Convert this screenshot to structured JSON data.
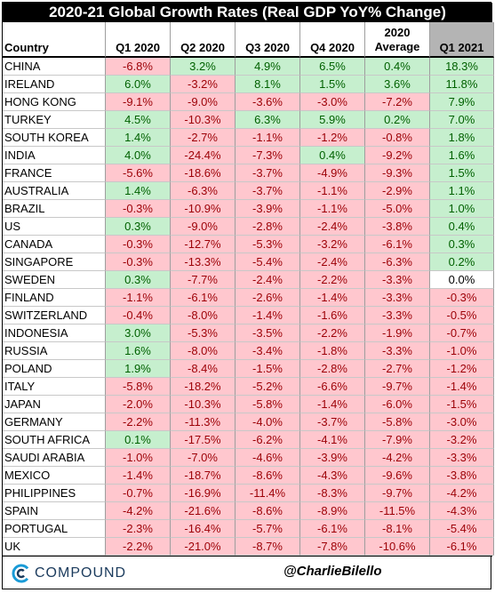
{
  "title": "2020-21 Global Growth Rates (Real GDP YoY% Change)",
  "footer": {
    "brand": "COMPOUND",
    "handle": "@CharlieBilello",
    "brand_color": "#1a3a5c",
    "logo_icon": "compound-c-icon"
  },
  "colors": {
    "positive_fill": "#c6efce",
    "positive_text": "#006100",
    "negative_fill": "#ffc7ce",
    "negative_text": "#9c0006",
    "highlight_header": "#b4b4b4"
  },
  "chart_data": {
    "type": "table",
    "title": "2020-21 Global Growth Rates (Real GDP YoY% Change)",
    "columns": [
      "Country",
      "Q1 2020",
      "Q2 2020",
      "Q3 2020",
      "Q4 2020",
      "2020 Average",
      "Q1 2021"
    ],
    "unit": "%",
    "rows": [
      {
        "country": "CHINA",
        "values": [
          -6.8,
          3.2,
          4.9,
          6.5,
          0.4,
          18.3
        ]
      },
      {
        "country": "IRELAND",
        "values": [
          6.0,
          -3.2,
          8.1,
          1.5,
          3.6,
          11.8
        ]
      },
      {
        "country": "HONG KONG",
        "values": [
          -9.1,
          -9.0,
          -3.6,
          -3.0,
          -7.2,
          7.9
        ]
      },
      {
        "country": "TURKEY",
        "values": [
          4.5,
          -10.3,
          6.3,
          5.9,
          0.2,
          7.0
        ]
      },
      {
        "country": "SOUTH KOREA",
        "values": [
          1.4,
          -2.7,
          -1.1,
          -1.2,
          -0.8,
          1.8
        ]
      },
      {
        "country": "INDIA",
        "values": [
          4.0,
          -24.4,
          -7.3,
          0.4,
          -9.2,
          1.6
        ]
      },
      {
        "country": "FRANCE",
        "values": [
          -5.6,
          -18.6,
          -3.7,
          -4.9,
          -9.3,
          1.5
        ]
      },
      {
        "country": "AUSTRALIA",
        "values": [
          1.4,
          -6.3,
          -3.7,
          -1.1,
          -2.9,
          1.1
        ]
      },
      {
        "country": "BRAZIL",
        "values": [
          -0.3,
          -10.9,
          -3.9,
          -1.1,
          -5.0,
          1.0
        ]
      },
      {
        "country": "US",
        "values": [
          0.3,
          -9.0,
          -2.8,
          -2.4,
          -3.8,
          0.4
        ]
      },
      {
        "country": "CANADA",
        "values": [
          -0.3,
          -12.7,
          -5.3,
          -3.2,
          -6.1,
          0.3
        ]
      },
      {
        "country": "SINGAPORE",
        "values": [
          -0.3,
          -13.3,
          -5.4,
          -2.4,
          -6.3,
          0.2
        ]
      },
      {
        "country": "SWEDEN",
        "values": [
          0.3,
          -7.7,
          -2.4,
          -2.2,
          -3.3,
          0.0
        ]
      },
      {
        "country": "FINLAND",
        "values": [
          -1.1,
          -6.1,
          -2.6,
          -1.4,
          -3.3,
          -0.3
        ]
      },
      {
        "country": "SWITZERLAND",
        "values": [
          -0.4,
          -8.0,
          -1.4,
          -1.6,
          -3.3,
          -0.5
        ]
      },
      {
        "country": "INDONESIA",
        "values": [
          3.0,
          -5.3,
          -3.5,
          -2.2,
          -1.9,
          -0.7
        ]
      },
      {
        "country": "RUSSIA",
        "values": [
          1.6,
          -8.0,
          -3.4,
          -1.8,
          -3.3,
          -1.0
        ]
      },
      {
        "country": "POLAND",
        "values": [
          1.9,
          -8.4,
          -1.5,
          -2.8,
          -2.7,
          -1.2
        ]
      },
      {
        "country": "ITALY",
        "values": [
          -5.8,
          -18.2,
          -5.2,
          -6.6,
          -9.7,
          -1.4
        ]
      },
      {
        "country": "JAPAN",
        "values": [
          -2.0,
          -10.3,
          -5.8,
          -1.4,
          -6.0,
          -1.5
        ]
      },
      {
        "country": "GERMANY",
        "values": [
          -2.2,
          -11.3,
          -4.0,
          -3.7,
          -5.8,
          -3.0
        ]
      },
      {
        "country": "SOUTH AFRICA",
        "values": [
          0.1,
          -17.5,
          -6.2,
          -4.1,
          -7.9,
          -3.2
        ]
      },
      {
        "country": "SAUDI ARABIA",
        "values": [
          -1.0,
          -7.0,
          -4.6,
          -3.9,
          -4.2,
          -3.3
        ]
      },
      {
        "country": "MEXICO",
        "values": [
          -1.4,
          -18.7,
          -8.6,
          -4.3,
          -9.6,
          -3.8
        ]
      },
      {
        "country": "PHILIPPINES",
        "values": [
          -0.7,
          -16.9,
          -11.4,
          -8.3,
          -9.7,
          -4.2
        ]
      },
      {
        "country": "SPAIN",
        "values": [
          -4.2,
          -21.6,
          -8.6,
          -8.9,
          -11.5,
          -4.3
        ]
      },
      {
        "country": "PORTUGAL",
        "values": [
          -2.3,
          -16.4,
          -5.7,
          -6.1,
          -8.1,
          -5.4
        ]
      },
      {
        "country": "UK",
        "values": [
          -2.2,
          -21.0,
          -8.7,
          -7.8,
          -10.6,
          -6.1
        ]
      }
    ]
  }
}
